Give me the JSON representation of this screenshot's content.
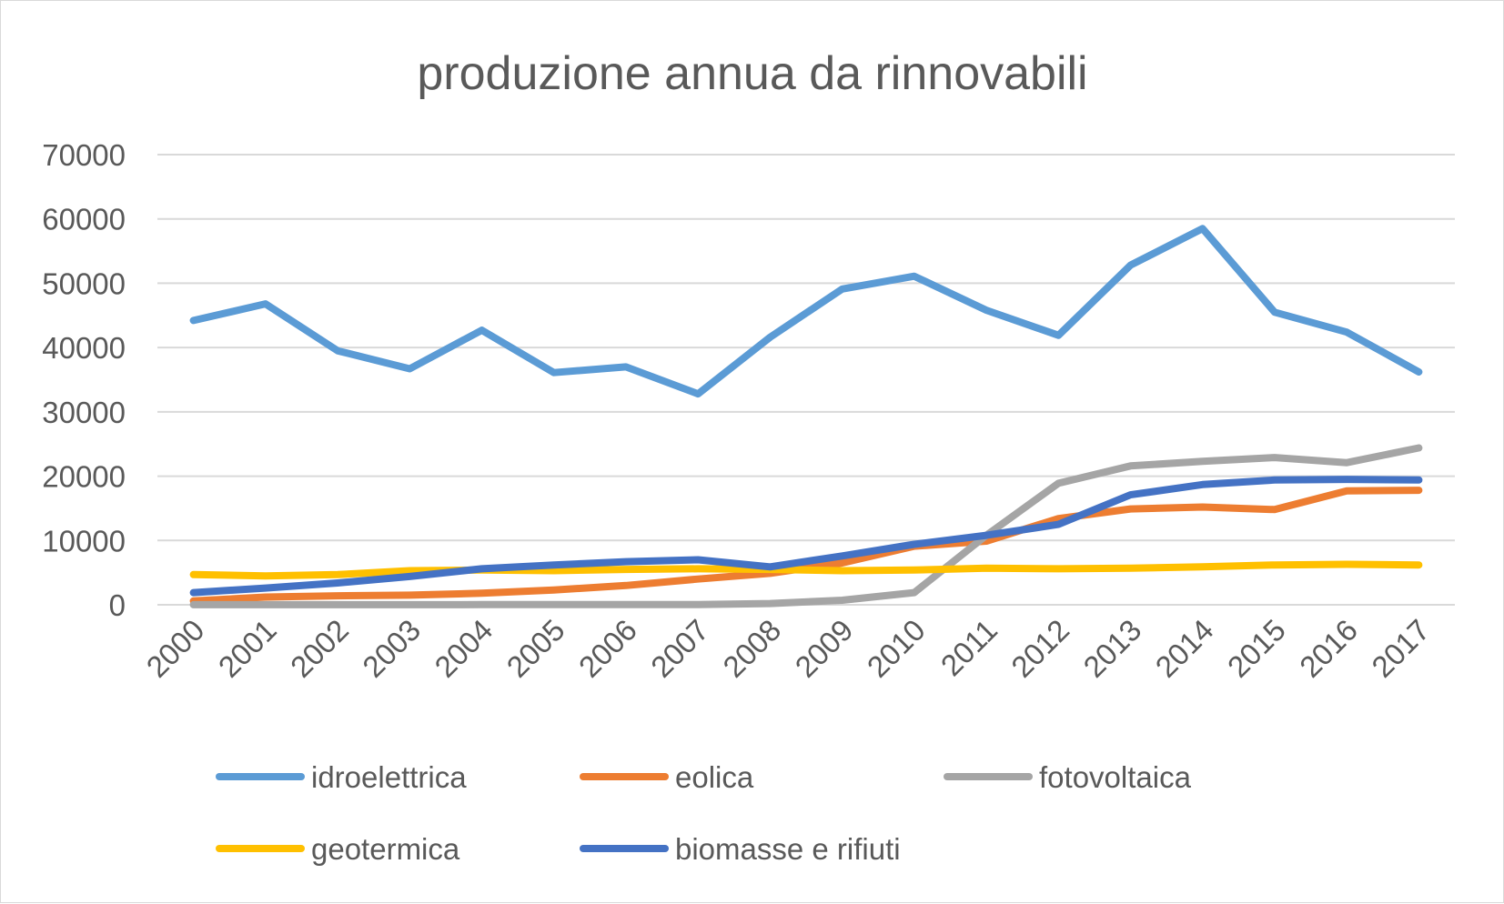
{
  "chart_data": {
    "type": "line",
    "title": "produzione annua da rinnovabili",
    "xlabel": "",
    "ylabel": "",
    "ylim": [
      0,
      70000
    ],
    "yticks": [
      0,
      10000,
      20000,
      30000,
      40000,
      50000,
      60000,
      70000
    ],
    "ytick_labels": [
      "0",
      "10000",
      "20000",
      "30000",
      "40000",
      "50000",
      "60000",
      "70000"
    ],
    "categories": [
      "2000",
      "2001",
      "2002",
      "2003",
      "2004",
      "2005",
      "2006",
      "2007",
      "2008",
      "2009",
      "2010",
      "2011",
      "2012",
      "2013",
      "2014",
      "2015",
      "2016",
      "2017"
    ],
    "grid": true,
    "legend_position": "bottom",
    "series": [
      {
        "name": "idroelettrica",
        "color": "#5b9bd5",
        "values": [
          44200,
          46800,
          39500,
          36700,
          42700,
          36100,
          37000,
          32800,
          41600,
          49100,
          51100,
          45800,
          41900,
          52800,
          58500,
          45500,
          42400,
          36200
        ]
      },
      {
        "name": "eolica",
        "color": "#ed7d31",
        "values": [
          600,
          1200,
          1400,
          1500,
          1800,
          2300,
          3000,
          4000,
          4900,
          6500,
          9100,
          9900,
          13400,
          14900,
          15200,
          14800,
          17700,
          17800
        ]
      },
      {
        "name": "fotovoltaica",
        "color": "#a5a5a5",
        "values": [
          20,
          20,
          20,
          20,
          30,
          30,
          40,
          40,
          200,
          700,
          1900,
          10800,
          18900,
          21600,
          22300,
          22900,
          22100,
          24400
        ]
      },
      {
        "name": "geotermica",
        "color": "#ffc000",
        "values": [
          4700,
          4500,
          4700,
          5300,
          5400,
          5300,
          5500,
          5600,
          5500,
          5300,
          5400,
          5700,
          5600,
          5700,
          5900,
          6200,
          6300,
          6200
        ]
      },
      {
        "name": "biomasse e rifiuti",
        "color": "#4472c4",
        "values": [
          1900,
          2600,
          3400,
          4400,
          5600,
          6200,
          6700,
          7000,
          5900,
          7600,
          9400,
          10800,
          12500,
          17100,
          18700,
          19400,
          19500,
          19400
        ]
      }
    ]
  }
}
